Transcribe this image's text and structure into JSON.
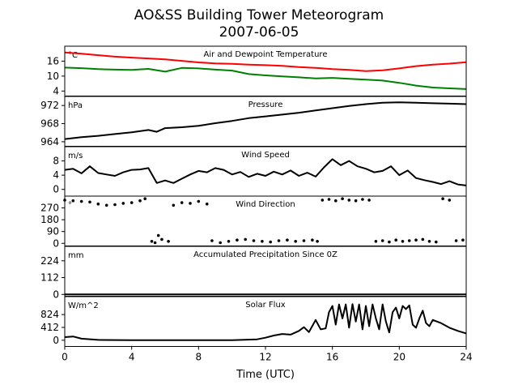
{
  "figure": {
    "title": "AO&SS Building Tower Meteorogram",
    "subtitle": "2007-06-05",
    "xlabel": "Time (UTC)"
  },
  "chart_data": [
    {
      "type": "line",
      "title": "Air and Dewpoint Temperature",
      "unit": "°C",
      "x": [
        0,
        1,
        2,
        3,
        4,
        5,
        6,
        7,
        8,
        9,
        10,
        11,
        12,
        13,
        14,
        15,
        16,
        17,
        18,
        19,
        20,
        21,
        22,
        23,
        24
      ],
      "series": [
        {
          "color": "#ff0000",
          "values": [
            19.5,
            19.0,
            18.4,
            17.8,
            17.4,
            17.1,
            16.7,
            16.1,
            15.5,
            15.1,
            14.9,
            14.6,
            14.4,
            14.1,
            13.6,
            13.3,
            12.8,
            12.5,
            12.0,
            12.3,
            13.1,
            14.0,
            14.6,
            15.0,
            15.6
          ]
        },
        {
          "color": "#008000",
          "values": [
            13.4,
            13.2,
            12.8,
            12.6,
            12.5,
            12.9,
            11.8,
            13.3,
            13.1,
            12.6,
            12.2,
            10.8,
            10.3,
            9.9,
            9.5,
            9.1,
            9.3,
            8.9,
            8.6,
            8.2,
            7.3,
            6.2,
            5.4,
            5.1,
            4.8
          ]
        }
      ],
      "ylim": [
        2,
        22
      ],
      "yticks": [
        "4",
        "10",
        "16"
      ]
    },
    {
      "type": "line",
      "title": "Pressure",
      "unit": "hPa",
      "x": [
        0,
        1,
        2,
        3,
        4,
        5,
        5.5,
        6,
        7,
        8,
        9,
        10,
        11,
        12,
        13,
        14,
        15,
        16,
        17,
        18,
        19,
        20,
        21,
        22,
        23,
        24
      ],
      "series": [
        {
          "color": "#000000",
          "values": [
            964.6,
            965.0,
            965.3,
            965.7,
            966.1,
            966.6,
            966.2,
            967.0,
            967.2,
            967.5,
            968.1,
            968.6,
            969.2,
            969.6,
            970.0,
            970.4,
            970.9,
            971.4,
            971.9,
            972.3,
            972.6,
            972.7,
            972.6,
            972.5,
            972.4,
            972.3
          ]
        }
      ],
      "ylim": [
        963,
        974
      ],
      "yticks": [
        "964",
        "968",
        "972"
      ]
    },
    {
      "type": "line",
      "title": "Wind Speed",
      "unit": "m/s",
      "x": [
        0,
        0.5,
        1,
        1.5,
        2,
        2.5,
        3,
        3.5,
        4,
        4.5,
        5,
        5.5,
        6,
        6.5,
        7,
        7.5,
        8,
        8.5,
        9,
        9.5,
        10,
        10.5,
        11,
        11.5,
        12,
        12.5,
        13,
        13.5,
        14,
        14.5,
        15,
        15.5,
        16,
        16.5,
        17,
        17.5,
        18,
        18.5,
        19,
        19.5,
        20,
        20.5,
        21,
        21.5,
        22,
        22.5,
        23,
        23.5,
        24
      ],
      "series": [
        {
          "color": "#000000",
          "values": [
            5.5,
            5.8,
            4.5,
            6.5,
            4.6,
            4.2,
            3.8,
            4.8,
            5.5,
            5.6,
            6.0,
            1.8,
            2.5,
            1.8,
            3.0,
            4.2,
            5.2,
            4.8,
            6.0,
            5.5,
            4.2,
            4.9,
            3.5,
            4.4,
            3.8,
            5.0,
            4.2,
            5.3,
            3.8,
            4.7,
            3.6,
            6.2,
            8.5,
            6.8,
            8.0,
            6.5,
            5.8,
            4.8,
            5.2,
            6.5,
            4.0,
            5.3,
            3.2,
            2.6,
            2.1,
            1.5,
            2.3,
            1.4,
            1.1
          ]
        }
      ],
      "ylim": [
        -2,
        12
      ],
      "yticks": [
        "0",
        "4",
        "8"
      ]
    },
    {
      "type": "scatter",
      "title": "Wind Direction",
      "unit": "°",
      "x": [
        0,
        0.5,
        1,
        1.5,
        2,
        2.5,
        3,
        3.5,
        4,
        4.5,
        4.8,
        5.2,
        5.4,
        5.6,
        5.8,
        6.2,
        6.5,
        7,
        7.5,
        8,
        8.5,
        8.8,
        9.3,
        9.8,
        10.3,
        10.8,
        11.3,
        11.8,
        12.3,
        12.8,
        13.3,
        13.8,
        14.3,
        14.8,
        15.1,
        15.4,
        15.8,
        16.2,
        16.6,
        17,
        17.4,
        17.8,
        18.2,
        18.6,
        19,
        19.4,
        19.8,
        20.2,
        20.6,
        21,
        21.4,
        21.8,
        22.2,
        22.6,
        23,
        23.4,
        23.8
      ],
      "series": [
        {
          "color": "#000000",
          "values": [
            330,
            325,
            320,
            315,
            300,
            290,
            295,
            305,
            310,
            325,
            340,
            15,
            5,
            60,
            30,
            15,
            290,
            310,
            305,
            320,
            300,
            20,
            5,
            15,
            25,
            30,
            20,
            15,
            10,
            20,
            25,
            15,
            20,
            25,
            15,
            330,
            335,
            325,
            340,
            330,
            325,
            335,
            330,
            15,
            20,
            10,
            25,
            15,
            20,
            25,
            30,
            15,
            10,
            340,
            330,
            20,
            25
          ]
        }
      ],
      "ylim": [
        -20,
        360
      ],
      "yticks": [
        "0",
        "90",
        "180",
        "270"
      ]
    },
    {
      "type": "line",
      "title": "Accumulated Precipitation Since 0Z",
      "unit": "mm",
      "x": [
        0,
        24
      ],
      "series": [
        {
          "color": "#000000",
          "values": [
            0,
            0
          ]
        }
      ],
      "ylim": [
        -12,
        320
      ],
      "yticks": [
        "0",
        "112",
        "224"
      ]
    },
    {
      "type": "line",
      "title": "Solar Flux",
      "unit": "W/m^2",
      "x": [
        0,
        0.5,
        1,
        2,
        4,
        6,
        8,
        10,
        11.5,
        12,
        12.5,
        13,
        13.5,
        14,
        14.3,
        14.6,
        15,
        15.3,
        15.6,
        15.8,
        16,
        16.2,
        16.4,
        16.6,
        16.8,
        17,
        17.2,
        17.4,
        17.6,
        17.8,
        18,
        18.2,
        18.4,
        18.6,
        18.8,
        19,
        19.2,
        19.4,
        19.6,
        19.8,
        20,
        20.2,
        20.4,
        20.6,
        20.8,
        21,
        21.2,
        21.4,
        21.6,
        21.8,
        22,
        22.5,
        23,
        23.5,
        24
      ],
      "series": [
        {
          "color": "#000000",
          "values": [
            100,
            120,
            50,
            10,
            0,
            0,
            0,
            0,
            30,
            80,
            150,
            200,
            180,
            300,
            420,
            260,
            650,
            350,
            380,
            900,
            1100,
            500,
            1150,
            700,
            1150,
            400,
            1160,
            600,
            1150,
            350,
            1100,
            450,
            1150,
            700,
            350,
            1150,
            600,
            250,
            900,
            1050,
            700,
            1100,
            1000,
            1120,
            500,
            400,
            700,
            950,
            550,
            450,
            650,
            550,
            400,
            300,
            220
          ]
        }
      ],
      "ylim": [
        -200,
        1400
      ],
      "yticks": [
        "0",
        "412",
        "824"
      ]
    }
  ],
  "xaxis": {
    "ticks": [
      0,
      4,
      8,
      12,
      16,
      20,
      24
    ],
    "tick_labels": [
      "0",
      "4",
      "8",
      "12",
      "16",
      "20",
      "24"
    ],
    "xlim": [
      0,
      24
    ]
  }
}
